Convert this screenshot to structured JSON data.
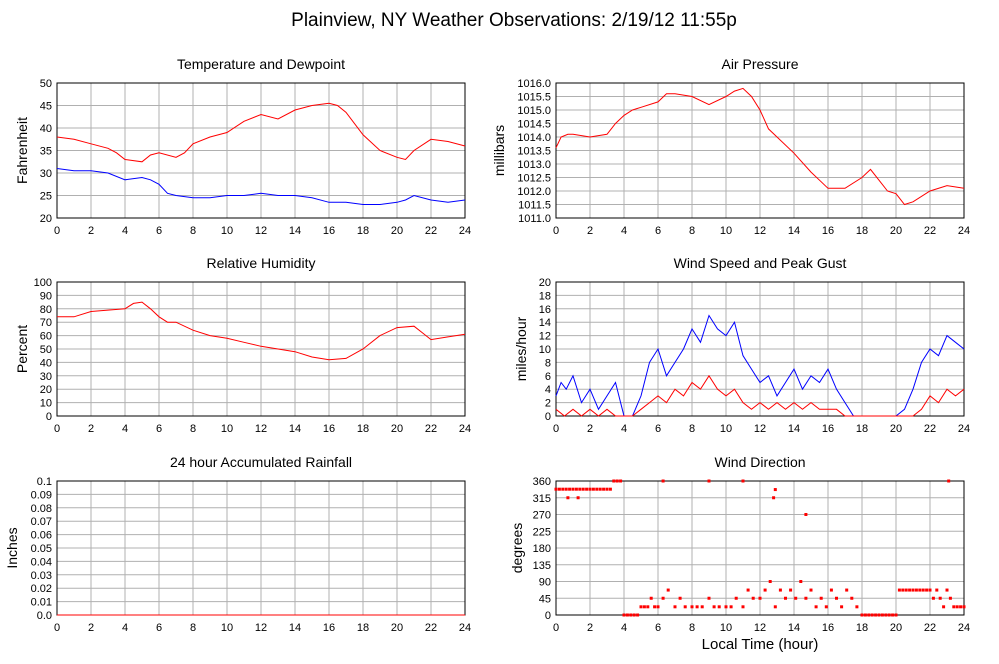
{
  "page_title": "Plainview, NY Weather Observations: 2/19/12 11:55p",
  "xlabel_bottom": "Local Time (hour)",
  "chart_data": [
    {
      "id": "temp",
      "type": "line",
      "title": "Temperature and Dewpoint",
      "ylabel": "Fahrenheit",
      "xlim": [
        0,
        24
      ],
      "ylim": [
        20,
        50
      ],
      "x_ticks": [
        "0",
        "2",
        "4",
        "6",
        "8",
        "10",
        "12",
        "14",
        "16",
        "18",
        "20",
        "22",
        "24"
      ],
      "y_ticks": [
        "20",
        "25",
        "30",
        "35",
        "40",
        "45",
        "50"
      ],
      "grid": true,
      "series": [
        {
          "color": "#ff0000",
          "x": [
            0,
            1,
            2,
            3,
            3.5,
            4,
            5,
            5.5,
            6,
            7,
            7.5,
            8,
            9,
            10,
            11,
            12,
            13,
            14,
            15,
            16,
            16.5,
            17,
            18,
            19,
            20,
            20.5,
            21,
            22,
            23,
            24
          ],
          "values": [
            38,
            37.5,
            36.5,
            35.5,
            34.5,
            33,
            32.5,
            34,
            34.5,
            33.5,
            34.5,
            36.5,
            38,
            39,
            41.5,
            43,
            42,
            44,
            45,
            45.5,
            45,
            43.5,
            38.5,
            35,
            33.5,
            33,
            35,
            37.5,
            37,
            36
          ]
        },
        {
          "color": "#0000ff",
          "x": [
            0,
            1,
            2,
            3,
            4,
            5,
            5.5,
            6,
            6.5,
            7,
            8,
            9,
            10,
            11,
            12,
            13,
            14,
            15,
            16,
            17,
            18,
            19,
            20,
            20.5,
            21,
            22,
            23,
            24
          ],
          "values": [
            31,
            30.5,
            30.5,
            30,
            28.5,
            29,
            28.5,
            27.5,
            25.5,
            25,
            24.5,
            24.5,
            25,
            25,
            25.5,
            25,
            25,
            24.5,
            23.5,
            23.5,
            23,
            23,
            23.5,
            24,
            25,
            24,
            23.5,
            24
          ]
        }
      ]
    },
    {
      "id": "pressure",
      "type": "line",
      "title": "Air Pressure",
      "ylabel": "millibars",
      "xlim": [
        0,
        24
      ],
      "ylim": [
        1011.0,
        1016.0
      ],
      "x_ticks": [
        "0",
        "2",
        "4",
        "6",
        "8",
        "10",
        "12",
        "14",
        "16",
        "18",
        "20",
        "22",
        "24"
      ],
      "y_ticks": [
        "1011.0",
        "1011.5",
        "1012.0",
        "1012.5",
        "1013.0",
        "1013.5",
        "1014.0",
        "1014.5",
        "1015.0",
        "1015.5",
        "1016.0"
      ],
      "grid": true,
      "series": [
        {
          "color": "#ff0000",
          "x": [
            0,
            0.3,
            0.7,
            1,
            2,
            3,
            3.5,
            4,
            4.5,
            5,
            6,
            6.5,
            7,
            8,
            9,
            10,
            10.5,
            11,
            11.5,
            12,
            12.5,
            13,
            14,
            15,
            15.5,
            16,
            17,
            18,
            18.5,
            19,
            19.5,
            20,
            20.5,
            21,
            22,
            23,
            24
          ],
          "values": [
            1013.6,
            1014.0,
            1014.1,
            1014.1,
            1014.0,
            1014.1,
            1014.5,
            1014.8,
            1015.0,
            1015.1,
            1015.3,
            1015.6,
            1015.6,
            1015.5,
            1015.2,
            1015.5,
            1015.7,
            1015.8,
            1015.5,
            1015.0,
            1014.3,
            1014.0,
            1013.4,
            1012.7,
            1012.4,
            1012.1,
            1012.1,
            1012.5,
            1012.8,
            1012.4,
            1012.0,
            1011.9,
            1011.5,
            1011.6,
            1012.0,
            1012.2,
            1012.1
          ]
        }
      ]
    },
    {
      "id": "humidity",
      "type": "line",
      "title": "Relative Humidity",
      "ylabel": "Percent",
      "xlim": [
        0,
        24
      ],
      "ylim": [
        0,
        100
      ],
      "x_ticks": [
        "0",
        "2",
        "4",
        "6",
        "8",
        "10",
        "12",
        "14",
        "16",
        "18",
        "20",
        "22",
        "24"
      ],
      "y_ticks": [
        "0",
        "10",
        "20",
        "30",
        "40",
        "50",
        "60",
        "70",
        "80",
        "90",
        "100"
      ],
      "grid": true,
      "series": [
        {
          "color": "#ff0000",
          "x": [
            0,
            1,
            2,
            3,
            4,
            4.5,
            5,
            5.5,
            6,
            6.5,
            7,
            8,
            9,
            10,
            11,
            12,
            13,
            14,
            15,
            16,
            17,
            18,
            19,
            20,
            21,
            21.5,
            22,
            23,
            24
          ],
          "values": [
            74,
            74,
            78,
            79,
            80,
            84,
            85,
            80,
            74,
            70,
            70,
            64,
            60,
            58,
            55,
            52,
            50,
            48,
            44,
            42,
            43,
            50,
            60,
            66,
            67,
            62,
            57,
            59,
            61
          ]
        }
      ]
    },
    {
      "id": "wind",
      "type": "line",
      "title": "Wind Speed and Peak Gust",
      "ylabel": "miles/hour",
      "xlim": [
        0,
        24
      ],
      "ylim": [
        0,
        20
      ],
      "x_ticks": [
        "0",
        "2",
        "4",
        "6",
        "8",
        "10",
        "12",
        "14",
        "16",
        "18",
        "20",
        "22",
        "24"
      ],
      "y_ticks": [
        "0",
        "2",
        "4",
        "6",
        "8",
        "10",
        "12",
        "14",
        "16",
        "18",
        "20"
      ],
      "grid": true,
      "series": [
        {
          "color": "#0000ff",
          "x": [
            0,
            0.3,
            0.6,
            1,
            1.5,
            2,
            2.5,
            3,
            3.5,
            4,
            4.5,
            5,
            5.5,
            6,
            6.5,
            7,
            7.5,
            8,
            8.5,
            9,
            9.5,
            10,
            10.5,
            11,
            11.5,
            12,
            12.5,
            13,
            13.5,
            14,
            14.5,
            15,
            15.5,
            16,
            16.5,
            17,
            17.5,
            18,
            19,
            20,
            20.5,
            21,
            21.5,
            22,
            22.5,
            23,
            23.5,
            24
          ],
          "values": [
            3,
            5,
            4,
            6,
            2,
            4,
            1,
            3,
            5,
            0,
            0,
            3,
            8,
            10,
            6,
            8,
            10,
            13,
            11,
            15,
            13,
            12,
            14,
            9,
            7,
            5,
            6,
            3,
            5,
            7,
            4,
            6,
            5,
            7,
            4,
            2,
            0,
            0,
            0,
            0,
            1,
            4,
            8,
            10,
            9,
            12,
            11,
            10
          ]
        },
        {
          "color": "#ff0000",
          "x": [
            0,
            0.5,
            1,
            1.5,
            2,
            2.5,
            3,
            3.5,
            4,
            4.5,
            5,
            5.5,
            6,
            6.5,
            7,
            7.5,
            8,
            8.5,
            9,
            9.5,
            10,
            10.5,
            11,
            11.5,
            12,
            12.5,
            13,
            13.5,
            14,
            14.5,
            15,
            15.5,
            16,
            16.5,
            17,
            17.5,
            18,
            19,
            20,
            21,
            21.5,
            22,
            22.5,
            23,
            23.5,
            24
          ],
          "values": [
            1,
            0,
            1,
            0,
            1,
            0,
            1,
            0,
            0,
            0,
            1,
            2,
            3,
            2,
            4,
            3,
            5,
            4,
            6,
            4,
            3,
            4,
            2,
            1,
            2,
            1,
            2,
            1,
            2,
            1,
            2,
            1,
            1,
            1,
            0,
            0,
            0,
            0,
            0,
            0,
            1,
            3,
            2,
            4,
            3,
            4
          ]
        }
      ]
    },
    {
      "id": "rain",
      "type": "line",
      "title": "24 hour Accumulated Rainfall",
      "ylabel": "Inches",
      "xlim": [
        0,
        24
      ],
      "ylim": [
        0,
        0.1
      ],
      "x_ticks": [
        "0",
        "2",
        "4",
        "6",
        "8",
        "10",
        "12",
        "14",
        "16",
        "18",
        "20",
        "22",
        "24"
      ],
      "y_ticks": [
        "0.0",
        "0.01",
        "0.02",
        "0.03",
        "0.04",
        "0.05",
        "0.06",
        "0.07",
        "0.08",
        "0.09",
        "0.1"
      ],
      "grid": true,
      "series": [
        {
          "color": "#ff0000",
          "x": [
            0,
            24
          ],
          "values": [
            0,
            0
          ]
        }
      ]
    },
    {
      "id": "direction",
      "type": "scatter",
      "title": "Wind Direction",
      "ylabel": "degrees",
      "xlim": [
        0,
        24
      ],
      "ylim": [
        0,
        360
      ],
      "x_ticks": [
        "0",
        "2",
        "4",
        "6",
        "8",
        "10",
        "12",
        "14",
        "16",
        "18",
        "20",
        "22",
        "24"
      ],
      "y_ticks": [
        "0",
        "45",
        "90",
        "135",
        "180",
        "225",
        "270",
        "315",
        "360"
      ],
      "grid": true,
      "series": [
        {
          "color": "#ff0000",
          "x": [
            0,
            0.2,
            0.4,
            0.6,
            0.8,
            1,
            1.2,
            1.4,
            1.6,
            1.8,
            2,
            2.2,
            2.4,
            2.6,
            2.8,
            3,
            3.2,
            0.7,
            1.3,
            3.4,
            3.6,
            3.8,
            4,
            4.2,
            4.4,
            4.6,
            4.8,
            5,
            5.2,
            5.4,
            5.6,
            5.8,
            6,
            6.3,
            6.6,
            7,
            7.3,
            7.6,
            8,
            8.3,
            8.6,
            9,
            9.3,
            9.6,
            10,
            10.3,
            10.6,
            11,
            11.3,
            11.6,
            12,
            12.3,
            12.6,
            12.9,
            13.2,
            13.5,
            13.8,
            14.1,
            14.4,
            14.7,
            15,
            15.3,
            15.6,
            15.9,
            16.2,
            16.5,
            16.8,
            17.1,
            17.4,
            17.7,
            18,
            18.2,
            18.4,
            18.6,
            18.8,
            19,
            19.2,
            19.4,
            19.6,
            19.8,
            20,
            20.2,
            20.4,
            20.6,
            20.8,
            21,
            21.2,
            21.4,
            21.6,
            21.8,
            22,
            22.2,
            22.4,
            22.6,
            22.8,
            23,
            23.2,
            23.4,
            23.6,
            23.8,
            24,
            6.3,
            9.0,
            11.0,
            12.8,
            12.9,
            14.7,
            23.1
          ],
          "values": [
            338,
            338,
            338,
            338,
            338,
            338,
            338,
            338,
            338,
            338,
            338,
            338,
            338,
            338,
            338,
            338,
            338,
            315,
            315,
            360,
            360,
            360,
            0,
            0,
            0,
            0,
            0,
            22,
            22,
            22,
            45,
            22,
            22,
            45,
            67,
            22,
            45,
            22,
            22,
            22,
            22,
            45,
            22,
            22,
            22,
            22,
            45,
            22,
            67,
            45,
            45,
            67,
            90,
            22,
            67,
            45,
            67,
            45,
            90,
            45,
            67,
            22,
            45,
            22,
            67,
            45,
            22,
            67,
            45,
            22,
            0,
            0,
            0,
            0,
            0,
            0,
            0,
            0,
            0,
            0,
            0,
            67,
            67,
            67,
            67,
            67,
            67,
            67,
            67,
            67,
            67,
            45,
            67,
            45,
            22,
            67,
            45,
            22,
            22,
            22,
            22,
            360,
            360,
            360,
            315,
            337,
            270,
            360
          ]
        }
      ]
    }
  ]
}
